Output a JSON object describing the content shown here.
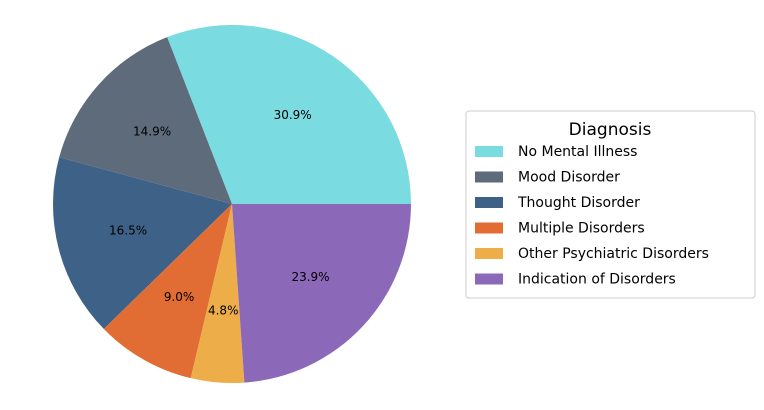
{
  "chart_data": {
    "type": "pie",
    "legend_title": "Diagnosis",
    "legend_position": "right",
    "start_angle_deg": 0,
    "direction": "counterclockwise",
    "slices": [
      {
        "label": "No Mental Illness",
        "value": 30.9,
        "pct_label": "30.9%",
        "color": "#7adbe0"
      },
      {
        "label": "Mood Disorder",
        "value": 14.9,
        "pct_label": "14.9%",
        "color": "#5e6b7b"
      },
      {
        "label": "Thought Disorder",
        "value": 16.5,
        "pct_label": "16.5%",
        "color": "#3e6287"
      },
      {
        "label": "Multiple Disorders",
        "value": 9.0,
        "pct_label": "9.0%",
        "color": "#e26d34"
      },
      {
        "label": "Other Psychiatric Disorders",
        "value": 4.8,
        "pct_label": "4.8%",
        "color": "#edae4a"
      },
      {
        "label": "Indication of Disorders",
        "value": 23.9,
        "pct_label": "23.9%",
        "color": "#8c68b8"
      }
    ]
  }
}
